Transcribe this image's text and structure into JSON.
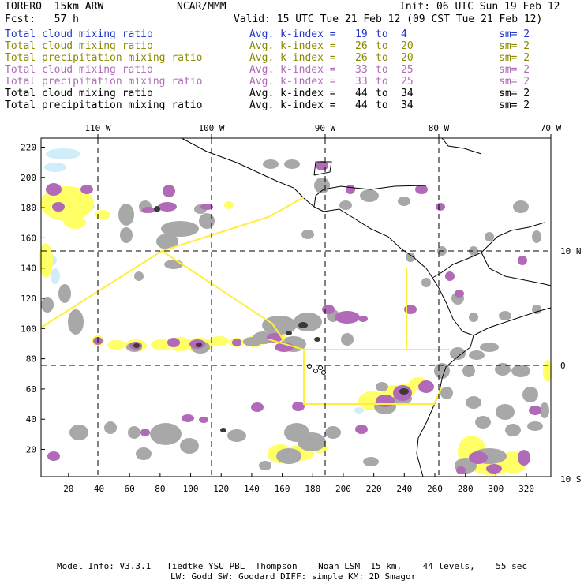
{
  "header": {
    "model": "TORERO  15km ARW",
    "org": "NCAR/MMM",
    "init": "Init: 06 UTC Sun 19 Feb 12",
    "fcst": "Fcst:   57 h",
    "valid": "Valid: 15 UTC Tue 21 Feb 12 (09 CST Tue 21 Feb 12)"
  },
  "legend": [
    {
      "field": "Total cloud mixing ratio",
      "kindex": "Avg. k-index =",
      "from": "19",
      "to_word": "to",
      "to": "4",
      "sm": "sm= 2",
      "color": "#1f35c8"
    },
    {
      "field": "Total cloud mixing ratio",
      "kindex": "Avg. k-index =",
      "from": "26",
      "to_word": "to",
      "to": "20",
      "sm": "sm= 2",
      "color": "#8a8a00"
    },
    {
      "field": "Total precipitation mixing ratio",
      "kindex": "Avg. k-index =",
      "from": "26",
      "to_word": "to",
      "to": "20",
      "sm": "sm= 2",
      "color": "#8a8a00"
    },
    {
      "field": "Total cloud mixing ratio",
      "kindex": "Avg. k-index =",
      "from": "33",
      "to_word": "to",
      "to": "25",
      "sm": "sm= 2",
      "color": "#b06ab8"
    },
    {
      "field": "Total precipitation mixing ratio",
      "kindex": "Avg. k-index =",
      "from": "33",
      "to_word": "to",
      "to": "25",
      "sm": "sm= 2",
      "color": "#b06ab8"
    },
    {
      "field": "Total cloud mixing ratio",
      "kindex": "Avg. k-index =",
      "from": "44",
      "to_word": "to",
      "to": "34",
      "sm": "sm= 2",
      "color": "#000000"
    },
    {
      "field": "Total precipitation mixing ratio",
      "kindex": "Avg. k-index =",
      "from": "44",
      "to_word": "to",
      "to": "34",
      "sm": "sm= 2",
      "color": "#000000"
    }
  ],
  "map": {
    "lon_labels": [
      "110 W",
      "100 W",
      "90 W",
      "80 W",
      "70 W"
    ],
    "lat_labels": [
      "10 N",
      "0",
      "10 S"
    ],
    "x_ticks": [
      "20",
      "40",
      "60",
      "80",
      "100",
      "120",
      "140",
      "160",
      "180",
      "200",
      "220",
      "240",
      "260",
      "280",
      "300",
      "320"
    ],
    "y_ticks": [
      "20",
      "40",
      "60",
      "80",
      "100",
      "120",
      "140",
      "160",
      "180",
      "200",
      "220"
    ],
    "colors": {
      "cloud_low": "#cfeefa",
      "precip_mid": "#ffff66",
      "cloud_high": "#b06ab8",
      "cloud_grey": "#a8a8a8",
      "cloud_dark": "#3a3a3a",
      "domain_box": "#ffef3a",
      "coast": "#000000"
    }
  },
  "footer": {
    "line1": "Model Info: V3.3.1   Tiedtke YSU PBL  Thompson    Noah LSM  15 km,    44 levels,    55 sec",
    "line2": "LW: Godd SW: Goddard DIFF: simple KM: 2D Smagor"
  }
}
